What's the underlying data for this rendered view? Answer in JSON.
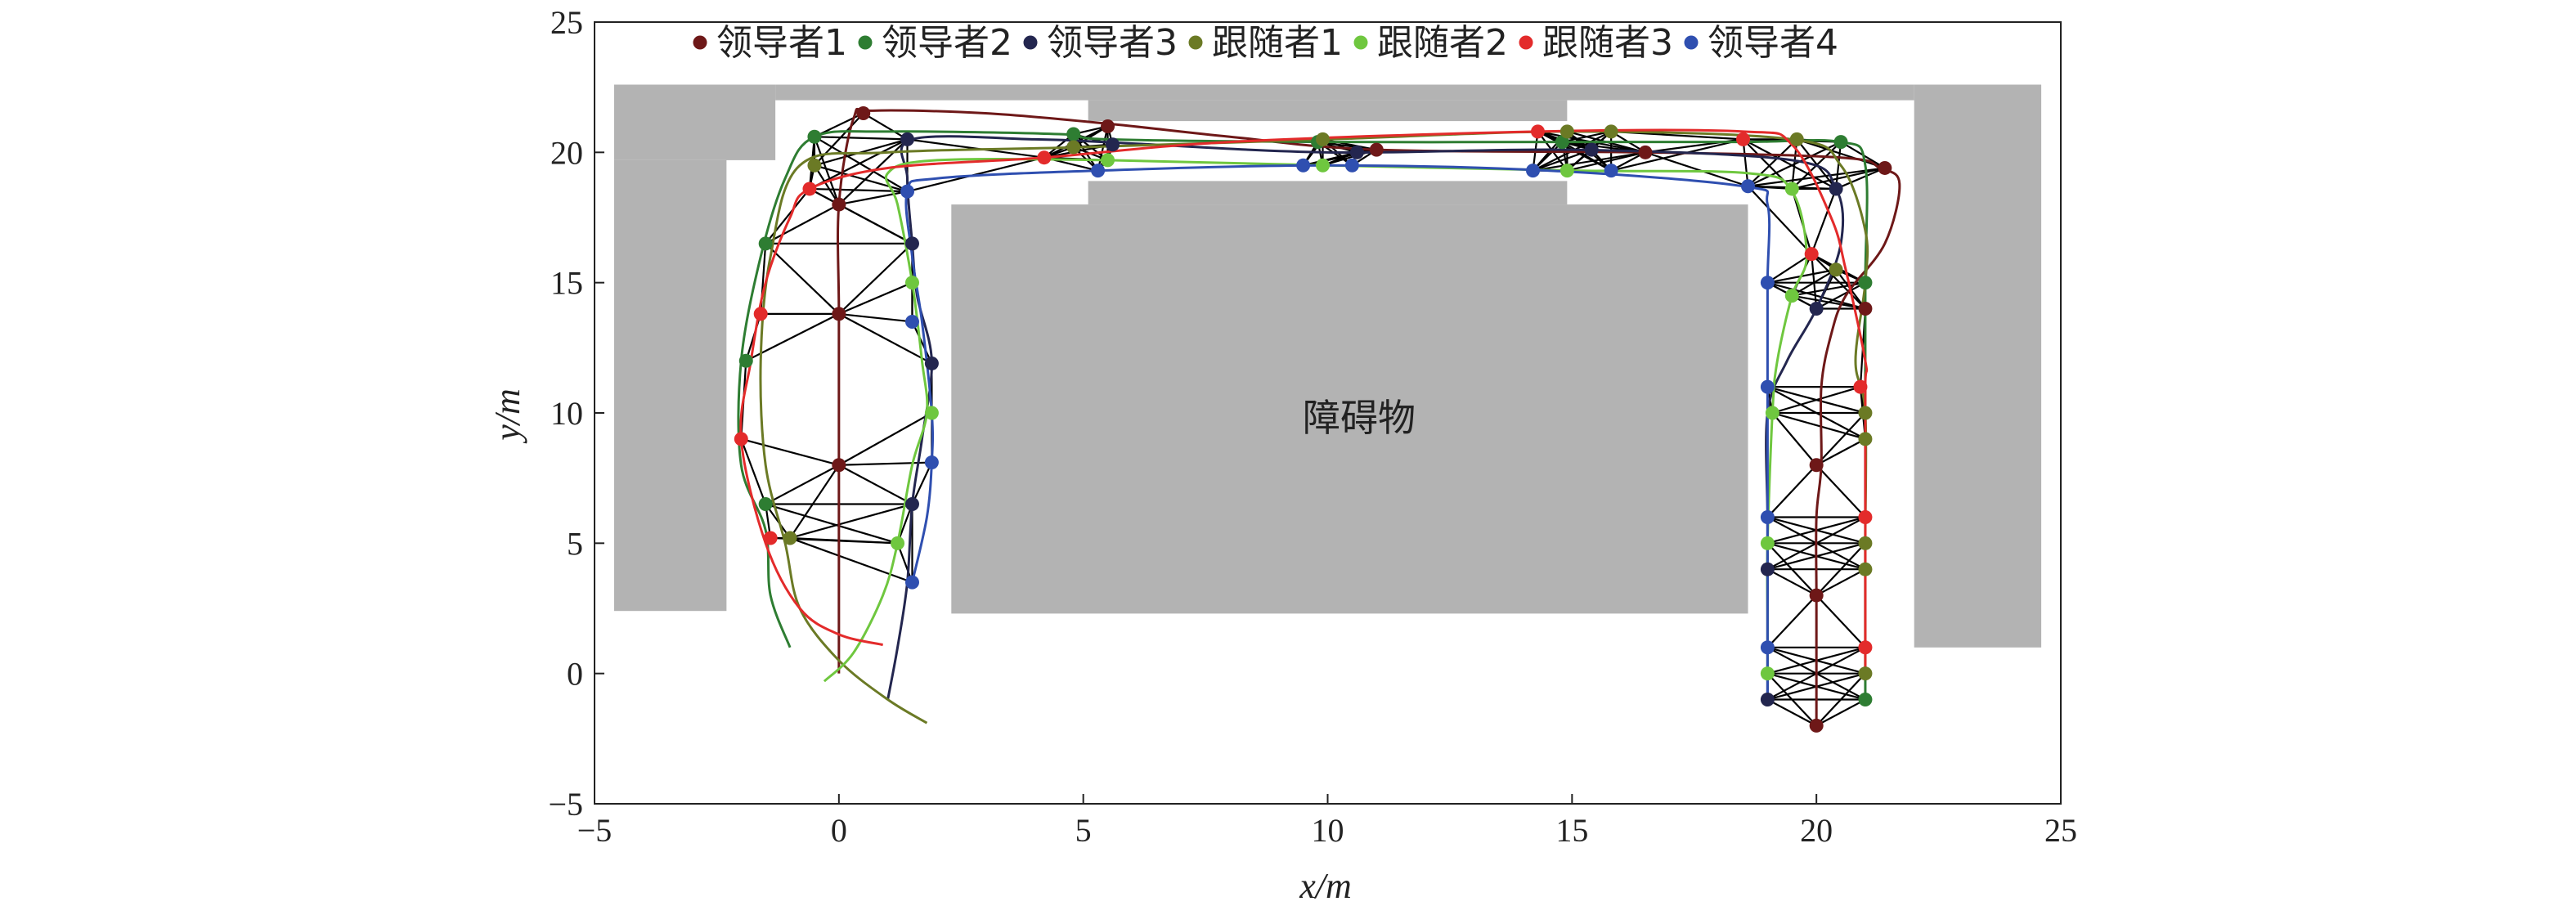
{
  "chart_data": {
    "type": "line",
    "xlabel": "x/m",
    "ylabel": "y/m",
    "xlim": [
      -5,
      25
    ],
    "ylim": [
      -5,
      25
    ],
    "xticks": [
      -5,
      0,
      5,
      10,
      15,
      20,
      25
    ],
    "yticks": [
      -5,
      0,
      5,
      10,
      15,
      20,
      25
    ],
    "xtick_labels": [
      "−5",
      "0",
      "5",
      "10",
      "15",
      "20",
      "25"
    ],
    "ytick_labels": [
      "−5",
      "0",
      "5",
      "10",
      "15",
      "20",
      "25"
    ],
    "grid": false,
    "legend_position": "top",
    "obstacle_label": "障碍物",
    "obstacle_color": "#b3b3b3",
    "link_color": "#000000",
    "obstacles": [
      {
        "x0": -4.6,
        "x1": -2.3,
        "y0": 2.4,
        "y1": 19.7
      },
      {
        "x0": -4.6,
        "x1": -1.3,
        "y0": 19.7,
        "y1": 22.6
      },
      {
        "x0": -1.3,
        "x1": 22.0,
        "y0": 22.0,
        "y1": 22.6
      },
      {
        "x0": 5.1,
        "x1": 14.9,
        "y0": 21.2,
        "y1": 22.0
      },
      {
        "x0": 2.3,
        "x1": 18.6,
        "y0": 2.3,
        "y1": 18.0
      },
      {
        "x0": 5.1,
        "x1": 14.9,
        "y0": 18.0,
        "y1": 18.9
      },
      {
        "x0": 22.0,
        "x1": 24.6,
        "y0": 1.0,
        "y1": 22.6
      }
    ],
    "series": [
      {
        "name": "领导者1",
        "color": "#6e1818",
        "path": [
          [
            0,
            0
          ],
          [
            0,
            8
          ],
          [
            0,
            13.8
          ],
          [
            0,
            18
          ],
          [
            0.3,
            21.3
          ],
          [
            0.7,
            21.6
          ],
          [
            3,
            21.5
          ],
          [
            5.5,
            21.1
          ],
          [
            8,
            20.6
          ],
          [
            11,
            20.1
          ],
          [
            16.5,
            20.0
          ],
          [
            20.5,
            19.8
          ],
          [
            21.3,
            19.4
          ],
          [
            21.7,
            18.8
          ],
          [
            21.4,
            16.5
          ],
          [
            20.6,
            14.5
          ],
          [
            20.3,
            13
          ],
          [
            20.1,
            11
          ],
          [
            20.1,
            8
          ],
          [
            20,
            6
          ],
          [
            20,
            3
          ],
          [
            20,
            0
          ],
          [
            20,
            -2
          ]
        ],
        "points": [
          [
            0,
            8
          ],
          [
            0,
            13.8
          ],
          [
            0,
            18
          ],
          [
            0.5,
            21.5
          ],
          [
            5.5,
            21.0
          ],
          [
            11,
            20.1
          ],
          [
            16.5,
            20.0
          ],
          [
            21.4,
            19.4
          ],
          [
            21,
            14
          ],
          [
            20,
            8
          ],
          [
            20,
            3
          ],
          [
            20,
            -2
          ]
        ]
      },
      {
        "name": "领导者2",
        "color": "#2e7d32",
        "path": [
          [
            -1,
            1
          ],
          [
            -1.4,
            3
          ],
          [
            -1.5,
            5.5
          ],
          [
            -2,
            8
          ],
          [
            -2,
            12
          ],
          [
            -1.6,
            16
          ],
          [
            -1.1,
            19
          ],
          [
            -0.5,
            20.6
          ],
          [
            1,
            20.8
          ],
          [
            4.5,
            20.7
          ],
          [
            5.5,
            20.5
          ],
          [
            10,
            20.4
          ],
          [
            15,
            20.4
          ],
          [
            18.5,
            20.4
          ],
          [
            20.5,
            20.4
          ],
          [
            21,
            19.5
          ],
          [
            21,
            15
          ],
          [
            21,
            10
          ],
          [
            21,
            5
          ],
          [
            21,
            0
          ],
          [
            21,
            -1
          ]
        ],
        "points": [
          [
            -1.5,
            6.5
          ],
          [
            -1.9,
            12
          ],
          [
            -1.5,
            16.5
          ],
          [
            -0.5,
            20.6
          ],
          [
            4.8,
            20.7
          ],
          [
            9.8,
            20.4
          ],
          [
            14.8,
            20.4
          ],
          [
            20.5,
            20.4
          ],
          [
            21,
            15
          ],
          [
            21,
            -1
          ]
        ]
      },
      {
        "name": "领导者3",
        "color": "#23264f",
        "path": [
          [
            1,
            -1
          ],
          [
            1.2,
            1
          ],
          [
            1.4,
            3.5
          ],
          [
            1.5,
            6.5
          ],
          [
            1.7,
            9
          ],
          [
            1.9,
            12
          ],
          [
            1.6,
            14.5
          ],
          [
            1.5,
            16.5
          ],
          [
            1.4,
            19
          ],
          [
            1.5,
            20.5
          ],
          [
            4,
            20.5
          ],
          [
            5.4,
            20.4
          ],
          [
            10,
            20
          ],
          [
            15,
            20.1
          ],
          [
            19.5,
            19.7
          ],
          [
            20.4,
            18.6
          ],
          [
            20.5,
            16.5
          ],
          [
            20,
            14
          ],
          [
            19.4,
            12
          ],
          [
            19,
            10
          ],
          [
            19,
            6
          ],
          [
            19,
            3
          ],
          [
            19,
            0
          ],
          [
            19,
            -1
          ]
        ],
        "points": [
          [
            1.5,
            6.5
          ],
          [
            1.9,
            11.9
          ],
          [
            1.5,
            16.5
          ],
          [
            1.4,
            20.5
          ],
          [
            5.6,
            20.3
          ],
          [
            10.6,
            20
          ],
          [
            15.4,
            20.1
          ],
          [
            20.4,
            18.6
          ],
          [
            20,
            14
          ],
          [
            19,
            4
          ],
          [
            19,
            -1
          ]
        ]
      },
      {
        "name": "跟随者1",
        "color": "#6b7a25",
        "path": [
          [
            1.8,
            -1.9
          ],
          [
            1,
            -1
          ],
          [
            0,
            0.5
          ],
          [
            -0.8,
            2.5
          ],
          [
            -1.1,
            5
          ],
          [
            -1.5,
            8
          ],
          [
            -1.6,
            12
          ],
          [
            -1.4,
            16
          ],
          [
            -0.8,
            19.5
          ],
          [
            1,
            20
          ],
          [
            5,
            20.2
          ],
          [
            10,
            20.5
          ],
          [
            15,
            20.8
          ],
          [
            19.5,
            20.5
          ],
          [
            20.5,
            19.5
          ],
          [
            21,
            17
          ],
          [
            21,
            15
          ],
          [
            20.8,
            12
          ],
          [
            21,
            10
          ],
          [
            21,
            5
          ],
          [
            21,
            0
          ]
        ],
        "points": [
          [
            -1.0,
            5.2
          ],
          [
            -0.5,
            19.5
          ],
          [
            4.8,
            20.2
          ],
          [
            9.9,
            20.5
          ],
          [
            14.9,
            20.8
          ],
          [
            15.8,
            20.8
          ],
          [
            19.6,
            20.5
          ],
          [
            20.4,
            15.5
          ],
          [
            21,
            10
          ],
          [
            21,
            9
          ],
          [
            21,
            5
          ],
          [
            21,
            4
          ],
          [
            21,
            0
          ]
        ]
      },
      {
        "name": "跟随者2",
        "color": "#6fc73f",
        "path": [
          [
            -0.3,
            -0.3
          ],
          [
            0.3,
            0.8
          ],
          [
            0.9,
            3
          ],
          [
            1.2,
            5
          ],
          [
            1.5,
            8
          ],
          [
            1.8,
            10
          ],
          [
            1.7,
            12
          ],
          [
            1.5,
            15
          ],
          [
            1.2,
            18
          ],
          [
            1.0,
            19.2
          ],
          [
            2,
            19.7
          ],
          [
            5.5,
            19.7
          ],
          [
            10,
            19.5
          ],
          [
            15,
            19.3
          ],
          [
            18.6,
            19.2
          ],
          [
            19.5,
            18.5
          ],
          [
            19.8,
            16
          ],
          [
            19.5,
            14.5
          ],
          [
            19.2,
            12
          ],
          [
            19.1,
            10
          ],
          [
            19,
            5
          ],
          [
            19,
            2
          ],
          [
            19,
            0
          ]
        ],
        "points": [
          [
            1.2,
            5
          ],
          [
            1.9,
            10
          ],
          [
            1.5,
            15
          ],
          [
            5.5,
            19.7
          ],
          [
            9.9,
            19.5
          ],
          [
            14.9,
            19.3
          ],
          [
            19.5,
            18.6
          ],
          [
            19.5,
            14.5
          ],
          [
            19.1,
            10
          ],
          [
            19,
            5
          ],
          [
            19,
            0
          ]
        ]
      },
      {
        "name": "跟随者3",
        "color": "#e32b2b",
        "path": [
          [
            0.9,
            1.1
          ],
          [
            0,
            1.5
          ],
          [
            -0.8,
            2.5
          ],
          [
            -1.5,
            5
          ],
          [
            -2,
            9
          ],
          [
            -1.8,
            12
          ],
          [
            -1.5,
            15
          ],
          [
            -1,
            17.5
          ],
          [
            -0.6,
            18.6
          ],
          [
            1,
            19.4
          ],
          [
            4.2,
            19.8
          ],
          [
            8,
            20.4
          ],
          [
            14.3,
            20.8
          ],
          [
            18.5,
            20.8
          ],
          [
            19.5,
            20.3
          ],
          [
            20.3,
            17.5
          ],
          [
            20.6,
            15.5
          ],
          [
            21,
            12
          ],
          [
            21,
            11
          ],
          [
            21,
            6
          ],
          [
            21,
            1
          ],
          [
            21,
            0
          ]
        ],
        "points": [
          [
            -1.4,
            5.2
          ],
          [
            -2,
            9
          ],
          [
            -1.6,
            13.8
          ],
          [
            -0.6,
            18.6
          ],
          [
            4.2,
            19.8
          ],
          [
            14.3,
            20.8
          ],
          [
            18.5,
            20.5
          ],
          [
            19.9,
            16.1
          ],
          [
            20.9,
            11
          ],
          [
            21,
            6
          ],
          [
            21,
            1
          ]
        ]
      },
      {
        "name": "领导者4",
        "color": "#2f4fb0",
        "path": [
          [
            1.5,
            3.5
          ],
          [
            1.8,
            6
          ],
          [
            1.9,
            8.1
          ],
          [
            1.9,
            10
          ],
          [
            1.7,
            13.5
          ],
          [
            1.5,
            16
          ],
          [
            1.4,
            18.5
          ],
          [
            2,
            19
          ],
          [
            5.3,
            19.3
          ],
          [
            10,
            19.5
          ],
          [
            14.5,
            19.3
          ],
          [
            18.5,
            18.7
          ],
          [
            19,
            18
          ],
          [
            19,
            15
          ],
          [
            19,
            11
          ],
          [
            19,
            6
          ],
          [
            19,
            1
          ],
          [
            19,
            -1
          ]
        ],
        "points": [
          [
            1.5,
            3.5
          ],
          [
            1.9,
            8.1
          ],
          [
            1.5,
            13.5
          ],
          [
            1.4,
            18.5
          ],
          [
            5.3,
            19.3
          ],
          [
            9.5,
            19.5
          ],
          [
            10.5,
            19.5
          ],
          [
            14.2,
            19.3
          ],
          [
            15.8,
            19.3
          ],
          [
            18.6,
            18.7
          ],
          [
            19,
            15
          ],
          [
            19,
            11
          ],
          [
            19,
            6
          ],
          [
            19,
            1
          ]
        ]
      }
    ]
  }
}
